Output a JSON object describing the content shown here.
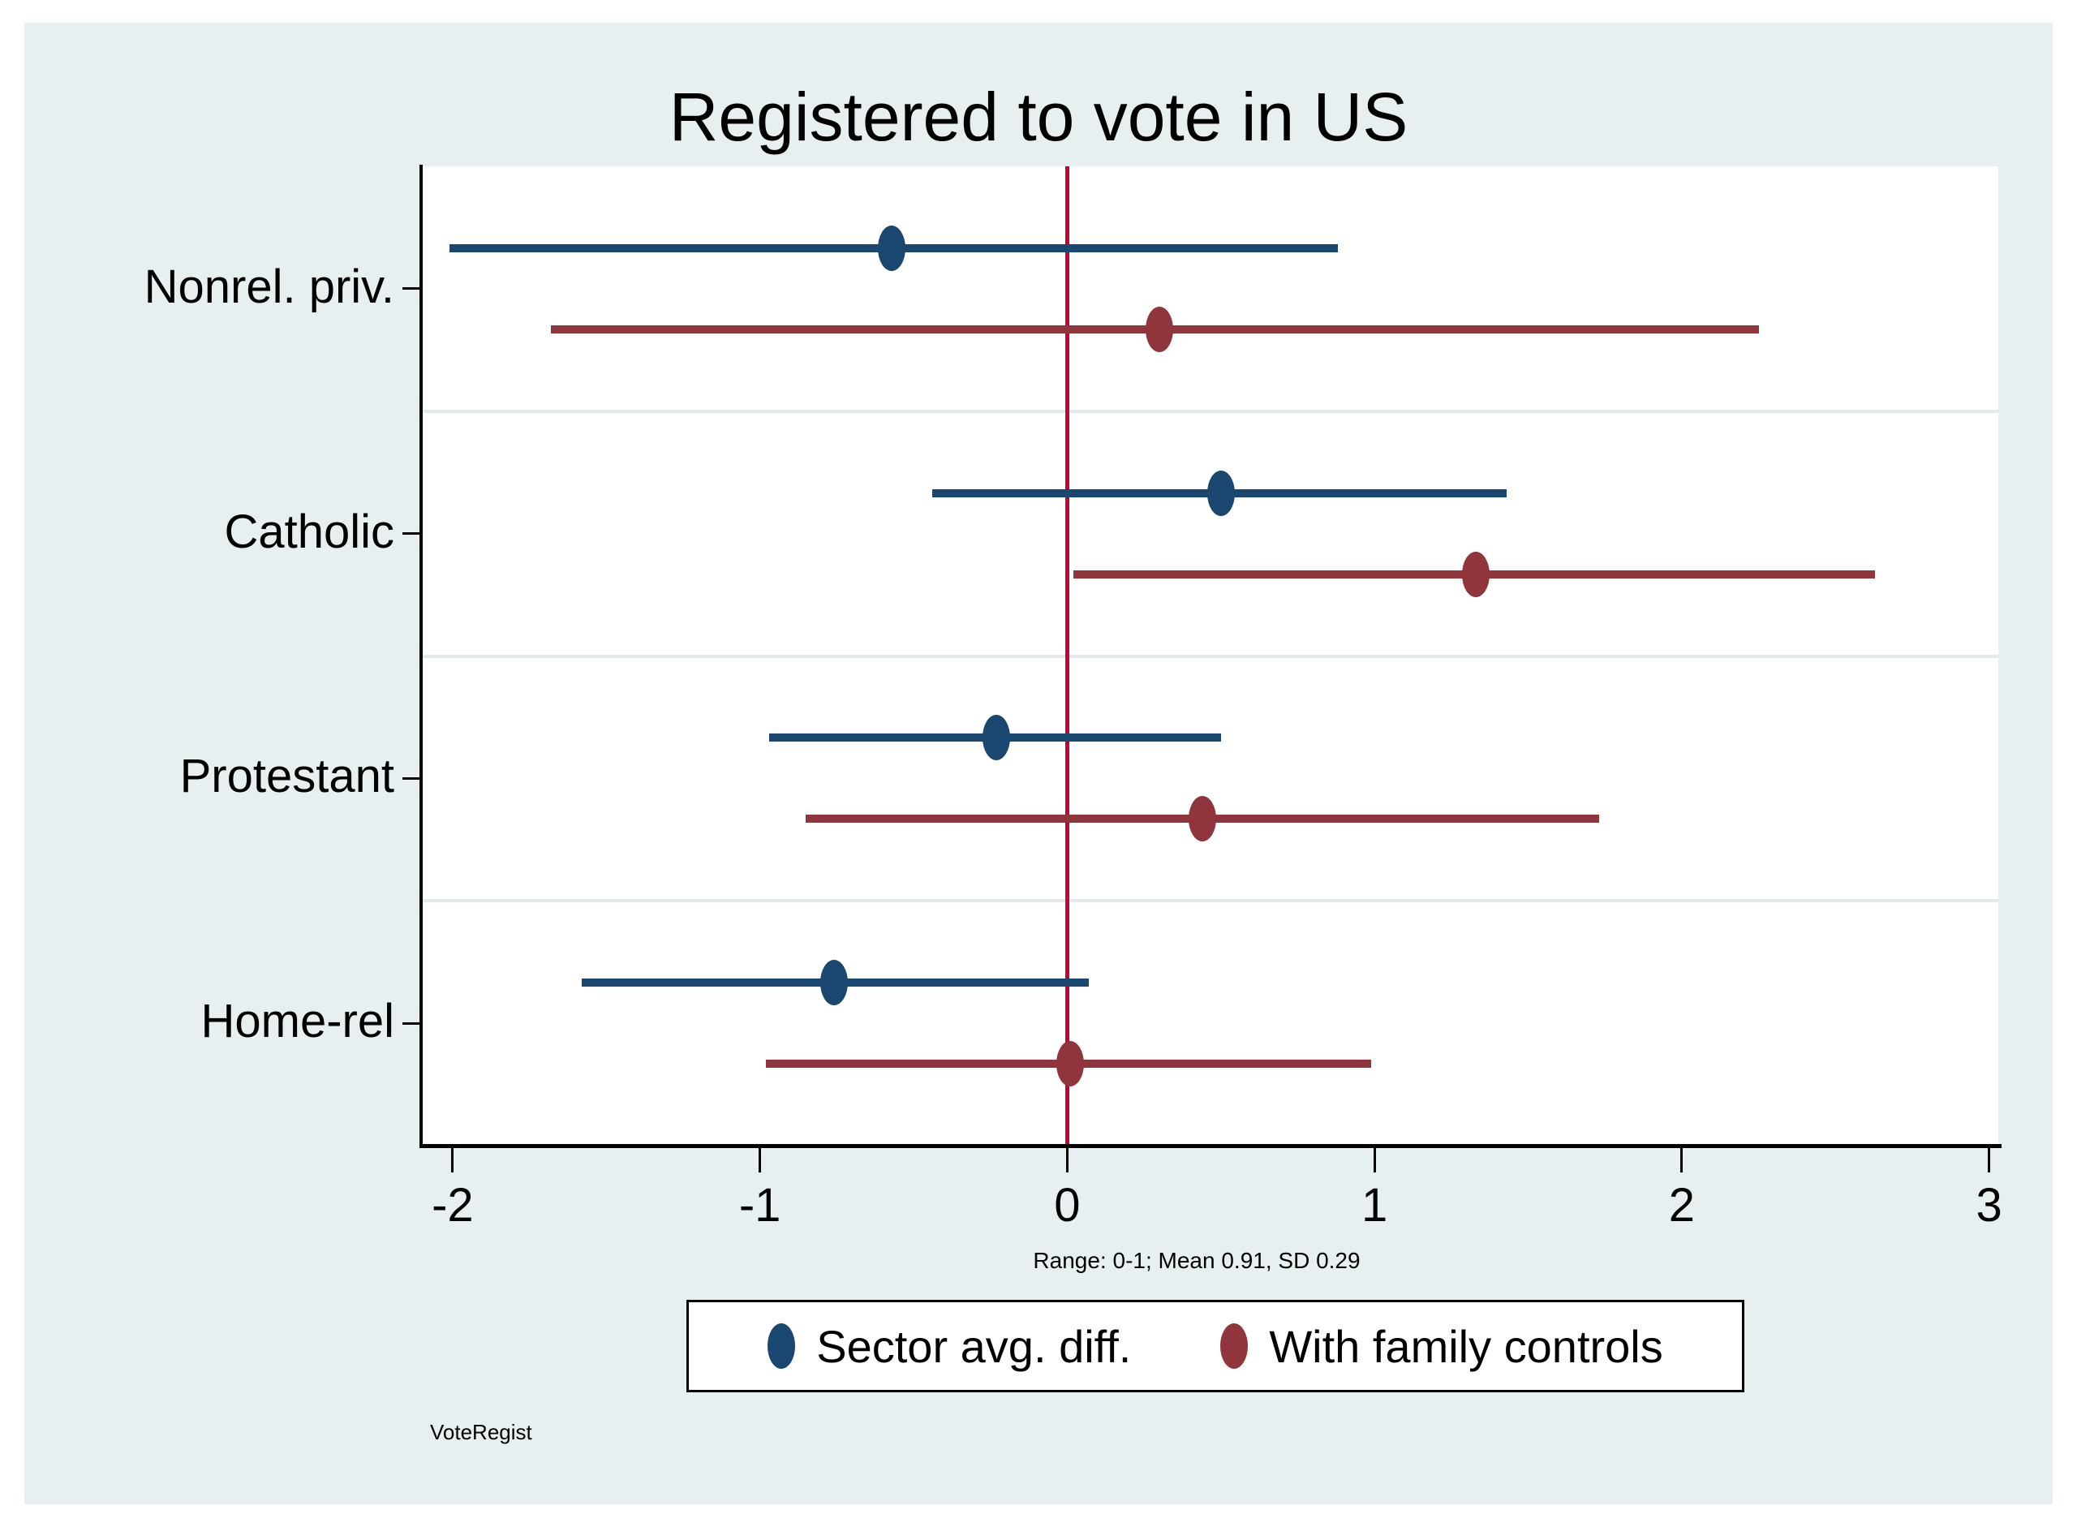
{
  "page": {
    "watermark": "VoteRegist"
  },
  "colors": {
    "outer_bg": "#e8eff1",
    "plot_bg": "#ffffff",
    "grid": "#e3eaed",
    "axis": "#000000",
    "navy": "#1a476f",
    "maroon": "#90353b",
    "zero_line_red": "#c10534"
  },
  "chart_data": {
    "type": "scatter",
    "subtype": "forest-plot-dot-with-ci",
    "title": "Registered to vote in US",
    "note": "Range: 0-1; Mean 0.91, SD 0.29",
    "categories": [
      "Nonrel. priv.",
      "Catholic",
      "Protestant",
      "Home-rel"
    ],
    "series": [
      {
        "name": "Sector avg. diff.",
        "color": "#1a476f",
        "values": [
          -0.57,
          0.5,
          -0.23,
          -0.76
        ],
        "ci_low": [
          -2.01,
          -0.44,
          -0.97,
          -1.58
        ],
        "ci_high": [
          0.88,
          1.43,
          0.5,
          0.07
        ]
      },
      {
        "name": "With family controls",
        "color": "#90353b",
        "values": [
          0.3,
          1.33,
          0.44,
          0.01
        ],
        "ci_low": [
          -1.68,
          0.02,
          -0.85,
          -0.98
        ],
        "ci_high": [
          2.25,
          2.63,
          1.73,
          0.99
        ]
      }
    ],
    "x_ticks": [
      -2,
      -1,
      0,
      1,
      2,
      3
    ],
    "xlim": [
      -2.1,
      3.03
    ],
    "zero_line": {
      "x": 0,
      "color": "#c10534"
    },
    "grid": "category-boundary-lines",
    "legend_position": "bottom"
  }
}
